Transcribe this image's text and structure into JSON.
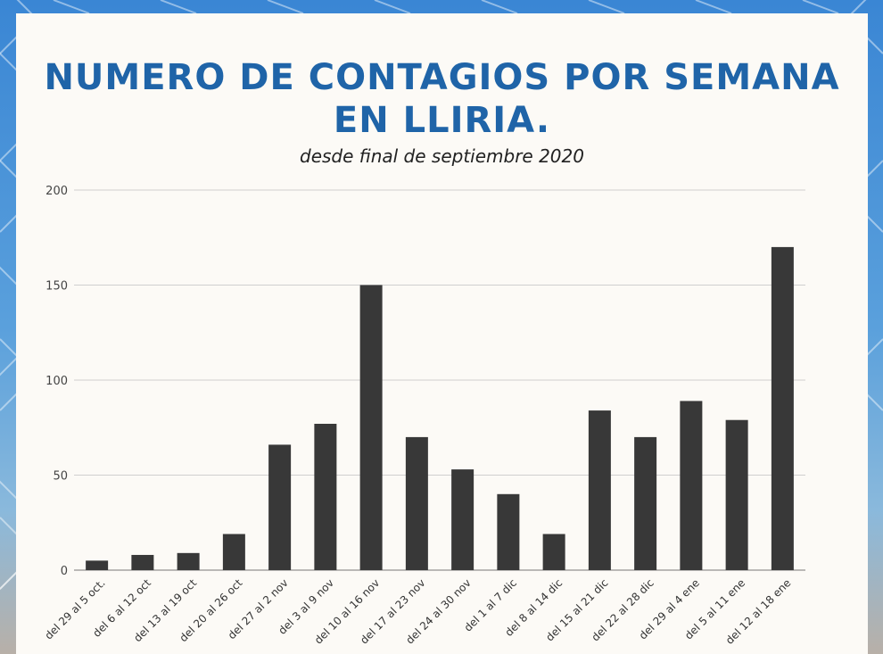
{
  "colors": {
    "title": "#1f64a8",
    "bar": "#383838",
    "grid": "#cfcfcf",
    "axis": "#777777"
  },
  "chart_data": {
    "type": "bar",
    "title": "NUMERO DE CONTAGIOS POR SEMANA EN LLIRIA.",
    "subtitle": "desde final de septiembre 2020",
    "xlabel": "",
    "ylabel": "",
    "ylim": [
      0,
      200
    ],
    "yticks": [
      0,
      50,
      100,
      150,
      200
    ],
    "grid": true,
    "categories": [
      "del 29 al 5 oct.",
      "del 6 al 12 oct",
      "del 13 al 19 oct",
      "del 20 al 26 oct",
      "del 27 al 2 nov",
      "del 3 al 9 nov",
      "del 10 al 16 nov",
      "del 17 al 23 nov",
      "del 24 al 30 nov",
      "del 1 al 7 dic",
      "del 8 al 14 dic",
      "del 15 al 21 dic",
      "del 22 al 28 dic",
      "del 29 al 4 ene",
      "del 5 al 11 ene",
      "del 12 al 18 ene"
    ],
    "values": [
      5,
      8,
      9,
      19,
      66,
      77,
      150,
      70,
      53,
      40,
      19,
      84,
      70,
      89,
      79,
      170
    ]
  }
}
